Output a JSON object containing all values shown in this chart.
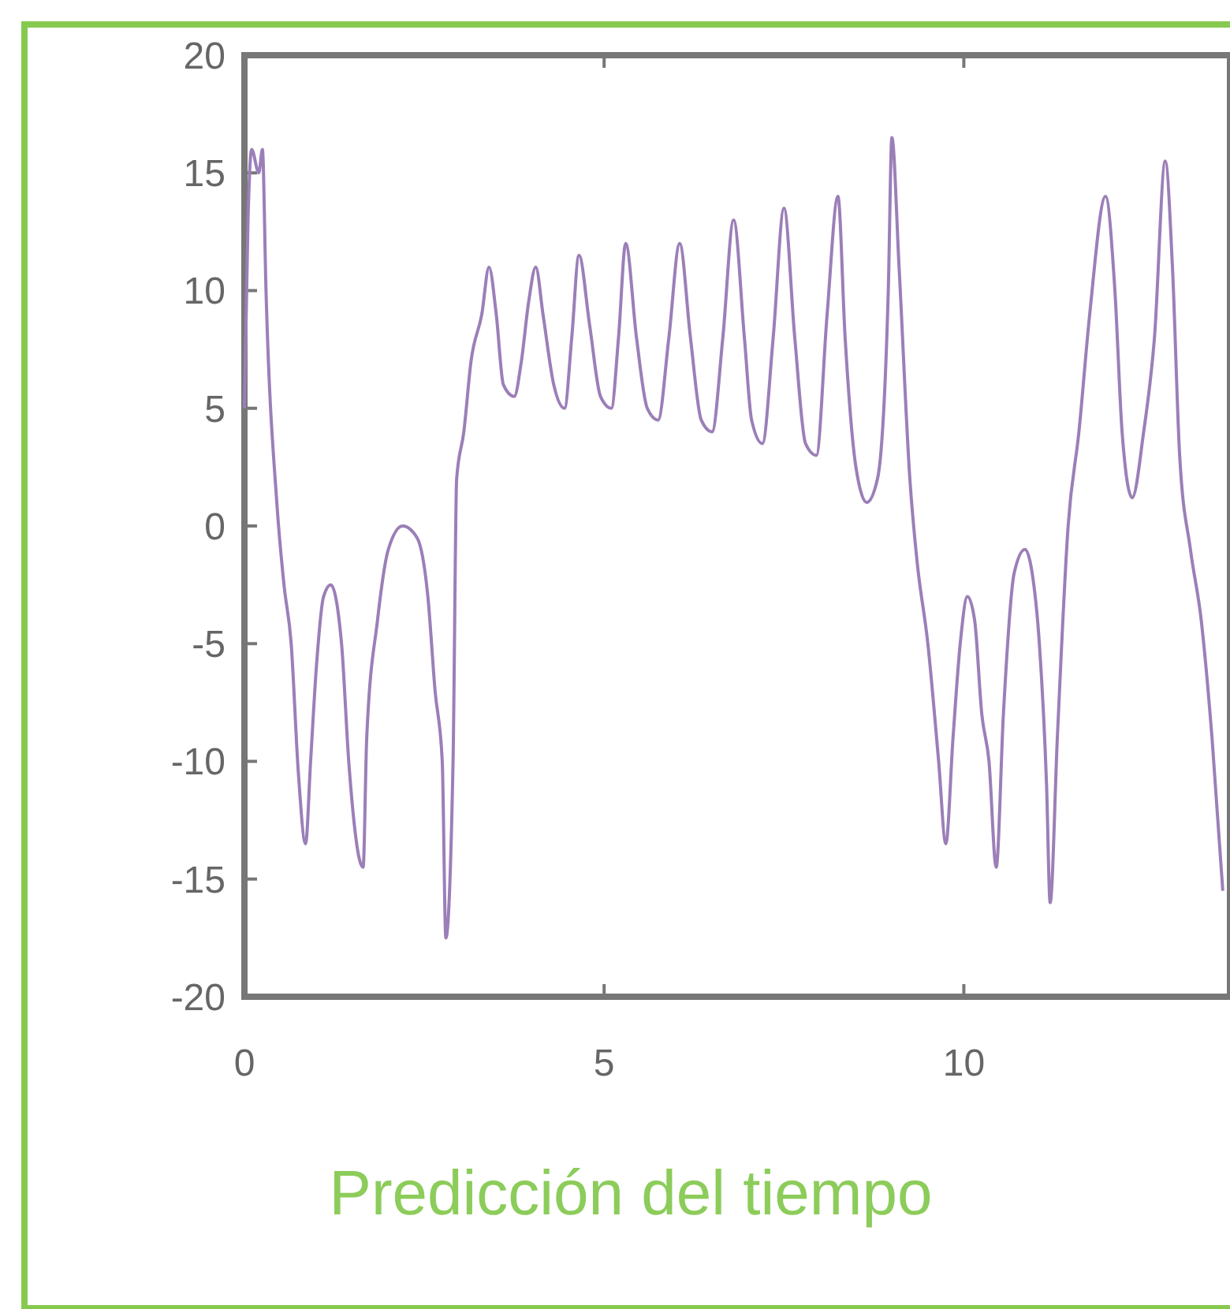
{
  "chart_data": {
    "type": "line",
    "title": "Predicción del tiempo",
    "xlim": [
      0,
      13.7
    ],
    "xticks": [
      0,
      5,
      10
    ],
    "ylim": [
      -20,
      20
    ],
    "yticks": [
      -20,
      -15,
      -10,
      -5,
      0,
      5,
      10,
      15,
      20
    ],
    "grid": false,
    "marker": "none",
    "line_style": "solid",
    "series": [
      {
        "color": "#9b7fb8",
        "x": [
          0,
          0.05,
          0.1,
          0.2,
          0.25,
          0.3,
          0.45,
          0.55,
          0.65,
          0.75,
          0.85,
          0.92,
          1.0,
          1.1,
          1.2,
          1.35,
          1.45,
          1.65,
          1.7,
          1.85,
          2.0,
          2.2,
          2.4,
          2.55,
          2.65,
          2.75,
          2.8,
          2.9,
          2.95,
          3.05,
          3.15,
          3.3,
          3.4,
          3.5,
          3.6,
          3.75,
          3.85,
          3.95,
          4.05,
          4.15,
          4.3,
          4.45,
          4.55,
          4.65,
          4.8,
          4.95,
          5.1,
          5.2,
          5.3,
          5.45,
          5.6,
          5.75,
          5.9,
          6.05,
          6.2,
          6.35,
          6.5,
          6.65,
          6.8,
          6.95,
          7.05,
          7.2,
          7.35,
          7.5,
          7.65,
          7.8,
          7.95,
          8.1,
          8.25,
          8.35,
          8.5,
          8.65,
          8.8,
          8.95,
          9.0,
          9.1,
          9.25,
          9.35,
          9.5,
          9.65,
          9.75,
          9.85,
          9.95,
          10.05,
          10.15,
          10.25,
          10.35,
          10.45,
          10.55,
          10.7,
          10.85,
          10.95,
          11.05,
          11.15,
          11.2,
          11.3,
          11.45,
          11.6,
          11.75,
          11.97,
          12.1,
          12.2,
          12.34,
          12.5,
          12.65,
          12.8,
          12.9,
          13.0,
          13.15,
          13.3,
          13.45,
          13.6
        ],
        "values": [
          5,
          13,
          16,
          15,
          16,
          10,
          1,
          -2.5,
          -5,
          -10.5,
          -13.5,
          -10,
          -6,
          -3,
          -2.5,
          -5,
          -10,
          -14.5,
          -9,
          -4,
          -1,
          0,
          -0.5,
          -3,
          -7,
          -10,
          -17.5,
          -10,
          2,
          4,
          7,
          9,
          11,
          9,
          6,
          5.5,
          7,
          9.5,
          11,
          9,
          6,
          5,
          8,
          11.5,
          8.5,
          5.5,
          5,
          8,
          12,
          8,
          5,
          4.5,
          8,
          12,
          8,
          4.5,
          4,
          8,
          13,
          8,
          4.5,
          3.5,
          8,
          13.5,
          8,
          3.5,
          3,
          9,
          14,
          8,
          2.5,
          1,
          2,
          10,
          16.5,
          11,
          2,
          -1.5,
          -5,
          -10,
          -13.5,
          -9,
          -5,
          -3,
          -4,
          -8,
          -10,
          -14.5,
          -8,
          -2,
          -1,
          -2,
          -5,
          -11,
          -16,
          -9,
          0,
          4,
          9,
          14,
          10,
          4,
          1.2,
          4,
          8,
          15.5,
          11,
          3,
          -1,
          -4,
          -9,
          -15.5
        ]
      }
    ]
  }
}
